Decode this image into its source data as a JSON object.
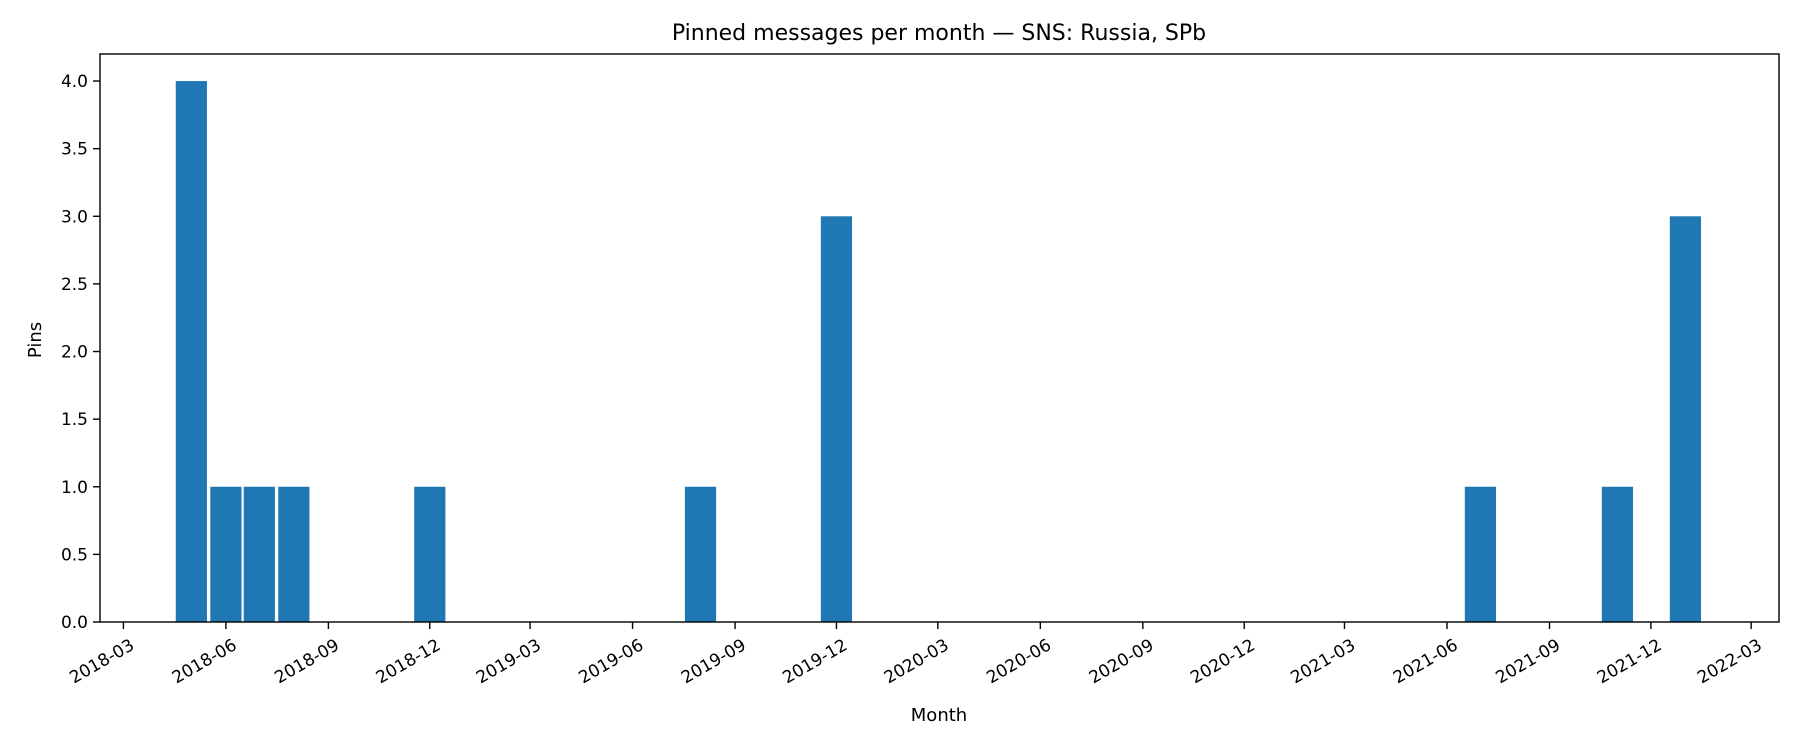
{
  "chart_data": {
    "type": "bar",
    "title": "Pinned messages per month — SNS: Russia, SPb",
    "xlabel": "Month",
    "ylabel": "Pins",
    "x_is_date": true,
    "xlim": [
      "2018-02-08",
      "2022-03-26"
    ],
    "ylim": [
      0,
      4.2
    ],
    "grid": false,
    "legend": "none",
    "bar_color": "#1f77b4",
    "x_ticks": [
      "2018-03",
      "2018-06",
      "2018-09",
      "2018-12",
      "2019-03",
      "2019-06",
      "2019-09",
      "2019-12",
      "2020-03",
      "2020-06",
      "2020-09",
      "2020-12",
      "2021-03",
      "2021-06",
      "2021-09",
      "2021-12",
      "2022-03"
    ],
    "y_ticks": [
      "0.0",
      "0.5",
      "1.0",
      "1.5",
      "2.0",
      "2.5",
      "3.0",
      "3.5",
      "4.0"
    ],
    "categories": [
      "2018-05",
      "2018-06",
      "2018-07",
      "2018-08",
      "2018-12",
      "2019-08",
      "2019-12",
      "2021-07",
      "2021-11",
      "2022-01"
    ],
    "values": [
      4,
      1,
      1,
      1,
      1,
      1,
      3,
      1,
      1,
      3
    ]
  }
}
